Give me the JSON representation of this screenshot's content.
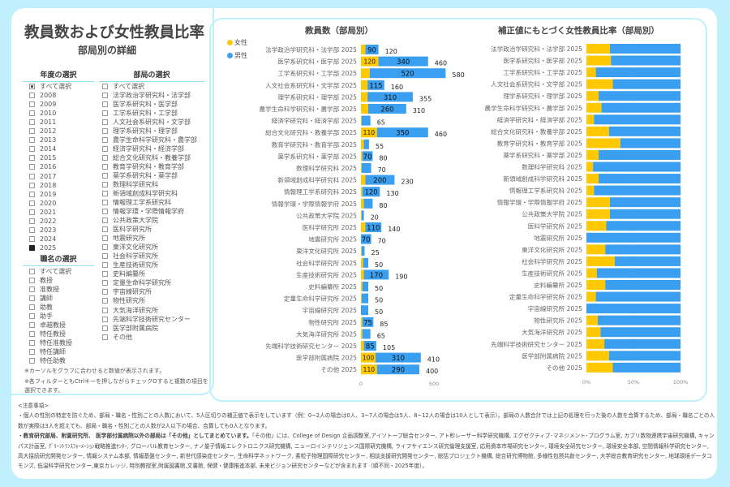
{
  "header": {
    "title": "教員数および女性教員比率",
    "subtitle": "部局別の詳細"
  },
  "colors": {
    "female": "#ffc800",
    "male": "#3a9ff0",
    "accent": "#bff0fc"
  },
  "filters": {
    "year": {
      "label": "年度の選択",
      "items": [
        "すべて選択",
        "2008",
        "2009",
        "2010",
        "2011",
        "2012",
        "2013",
        "2014",
        "2015",
        "2016",
        "2017",
        "2018",
        "2019",
        "2020",
        "2021",
        "2022",
        "2023",
        "2024",
        "2025"
      ],
      "checked": [
        "2025"
      ],
      "partial": [
        "すべて選択"
      ]
    },
    "department": {
      "label": "部局の選択",
      "items": [
        "すべて選択",
        "法学政治学研究科・法学部",
        "医学系研究科・医学部",
        "工学系研究科・工学部",
        "人文社会系研究科・文学部",
        "理学系研究科・理学部",
        "農学生命科学研究科・農学部",
        "経済学研究科・経済学部",
        "総合文化研究科・教養学部",
        "教育学研究科・教育学部",
        "薬学系研究科・薬学部",
        "数理科学研究科",
        "新領域創成科学研究科",
        "情報理工学系研究科",
        "情報学環・学際情報学府",
        "公共政策大学院",
        "医科学研究所",
        "地震研究所",
        "東洋文化研究所",
        "社会科学研究所",
        "生産技術研究所",
        "史料編纂所",
        "定量生命科学研究所",
        "宇宙線研究所",
        "物性研究所",
        "大気海洋研究所",
        "先端科学技術研究センター",
        "医学部附属病院",
        "その他"
      ]
    },
    "position": {
      "label": "職名の選択",
      "items": [
        "すべて選択",
        "教授",
        "准教授",
        "講師",
        "助教",
        "助手",
        "卓越教授",
        "特任教授",
        "特任准教授",
        "特任講師",
        "特任助教"
      ]
    },
    "hints": [
      "※カーソルをグラフに合わせると数値が表示されます。",
      "※各フィルターともCtrlキーを押しながらチェックOすると複数の項目を選択できます。"
    ]
  },
  "chart_data": [
    {
      "type": "bar",
      "stacked": true,
      "orientation": "horizontal",
      "title": "教員数（部局別）",
      "legend": {
        "placement": "top-left",
        "entries": [
          "女性",
          "男性"
        ]
      },
      "categories": [
        "法学政治学研究科・法学部 2025",
        "医学系研究科・医学部 2025",
        "工学系研究科・工学部 2025",
        "人文社会系研究科・文学部 2025",
        "理学系研究科・理学部 2025",
        "農学生命科学研究科・農学部 2025",
        "経済学研究科・経済学部 2025",
        "総合文化研究科・教養学部 2025",
        "教育学研究科・教育学部 2025",
        "薬学系研究科・薬学部 2025",
        "数理科学研究科 2025",
        "新領域創成科学研究科 2025",
        "情報理工学系研究科 2025",
        "情報学環・学際情報学府 2025",
        "公共政策大学院 2025",
        "医科学研究所 2025",
        "地震研究所 2025",
        "東洋文化研究所 2025",
        "社会科学研究所 2025",
        "生産技術研究所 2025",
        "史料編纂所 2025",
        "定量生命科学研究所 2025",
        "宇宙線研究所 2025",
        "物性研究所 2025",
        "大気海洋研究所 2025",
        "先端科学技術研究センター 2025",
        "医学部附属病院 2025",
        "その他 2025"
      ],
      "series": [
        {
          "name": "女性",
          "values": [
            30,
            120,
            60,
            45,
            45,
            50,
            5,
            110,
            20,
            10,
            5,
            30,
            10,
            20,
            5,
            30,
            0,
            5,
            15,
            20,
            10,
            5,
            0,
            10,
            10,
            20,
            100,
            110
          ]
        },
        {
          "name": "男性",
          "values": [
            90,
            340,
            520,
            115,
            310,
            260,
            60,
            350,
            35,
            70,
            65,
            200,
            120,
            60,
            15,
            110,
            70,
            20,
            35,
            170,
            40,
            45,
            50,
            75,
            55,
            85,
            310,
            290
          ]
        }
      ],
      "totals": [
        120,
        460,
        580,
        160,
        355,
        310,
        65,
        460,
        55,
        80,
        70,
        230,
        130,
        80,
        20,
        140,
        70,
        25,
        50,
        190,
        50,
        50,
        50,
        85,
        65,
        105,
        410,
        400
      ],
      "xlim": [
        0,
        600
      ],
      "xticks": [
        "0",
        "500"
      ],
      "grid": false
    },
    {
      "type": "bar",
      "stacked": true,
      "orientation": "horizontal",
      "normalized": true,
      "title": "補正値にもとづく女性教員比率（部局別）",
      "categories": [
        "法学政治学研究科・法学部 2025",
        "医学系研究科・医学部 2025",
        "工学系研究科・工学部 2025",
        "人文社会系研究科・文学部 2025",
        "理学系研究科・理学部 2025",
        "農学生命科学研究科・農学部 2025",
        "経済学研究科・経済学部 2025",
        "総合文化研究科・教養学部 2025",
        "教育学研究科・教育学部 2025",
        "薬学系研究科・薬学部 2025",
        "数理科学研究科 2025",
        "新領域創成科学研究科 2025",
        "情報理工学系研究科 2025",
        "情報学環・学際情報学府 2025",
        "公共政策大学院 2025",
        "医科学研究所 2025",
        "地震研究所 2025",
        "東洋文化研究所 2025",
        "社会科学研究所 2025",
        "生産技術研究所 2025",
        "史料編纂所 2025",
        "定量生命科学研究所 2025",
        "宇宙線研究所 2025",
        "物性研究所 2025",
        "大気海洋研究所 2025",
        "先端科学技術研究センター 2025",
        "医学部附属病院 2025",
        "その他 2025"
      ],
      "female_pct": [
        25,
        26,
        10,
        28,
        13,
        16,
        8,
        24,
        36,
        13,
        7,
        13,
        8,
        25,
        25,
        21,
        0,
        20,
        30,
        11,
        20,
        10,
        0,
        12,
        15,
        19,
        24,
        28
      ],
      "xlim": [
        0,
        100
      ],
      "xticks": [
        "0%",
        "50%",
        "100%"
      ],
      "grid": true
    }
  ],
  "notes": {
    "heading": "<注意事項>",
    "p1": "・個人の性別の特定を防ぐため、部局・職名・性別ごとの人数において、5人区切りの補正値で表示をしています（例：0~2人の場合は0人、3~7人の場合は5人、8~12人の場合は10人として表示）。部局の人数合計では上記の処理を行った後の人数を合算するため、部局・職名ごとの人数が実際は3人を超えても、部局・職名・性別ごとの人数が2人以下の場合、合算しても0人となります。",
    "p2_bold": "・教育研究部局、附置研究所、 医学部付属病院以外の部局は「その他」としてまとめています。",
    "p2": "「その他」には、College of Design 企画調整室,アイソトープ総合センター, アト秒レーザー科学研究機構, エグゼクティブ･マネジメント･プログラム室, カブリ数物連携宇宙研究機構, キャンパス計画室, ｸﾞﾘｰﾝﾄﾗﾝｽﾌｫｰﾒｰｼｮﾝ戦略推進ｾﾝﾀｰ, グローバル教育センター, ナノ量子情報エレクトロニクス研究機構, ニューロインテリジェンス国際研究機構, ライフサイエンス研究倫理支援室, 応用資本市場研究センター, 環境安全研究センター, 環境安全本部, 空間情報科学研究センター, 高大接続研究開発センター, 情報システム本部, 情報基盤センター, 新世代感染症センター, 生命科学ネットワーク, 素粒子物理国際研究センター, 相談支援研究開発センター, 総括プロジェクト機構, 総合研究博物館, 多様性包摂共創センター, 大学総合教育研究センター, 地球環境データコモンズ, 低温科学研究センター,東京カレッジ, 特別教授室,附属図書館,文書館, 保健・健康推進本部, 未来ビジョン研究センターなどが含まれます（順不同・2025年度）。"
  }
}
